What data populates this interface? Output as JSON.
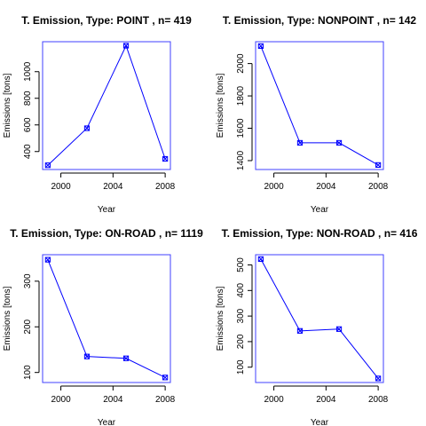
{
  "chart_data": [
    {
      "type": "line",
      "title": "T. Emission, Type:  POINT , n= 419",
      "xlabel": "Year",
      "ylabel": "Emissions [tons]",
      "x": [
        1999,
        2002,
        2005,
        2008
      ],
      "values": [
        297,
        575,
        1195,
        345
      ],
      "xlim": [
        1998.6,
        2008.4
      ],
      "ylim": [
        265,
        1225
      ],
      "xticks": [
        2000,
        2004,
        2008
      ],
      "yticks": [
        400,
        600,
        800,
        1000
      ],
      "line_color": "#0000ff",
      "box_color": "#4040ff",
      "grid": false
    },
    {
      "type": "line",
      "title": "T. Emission, Type:  NONPOINT , n= 142",
      "xlabel": "Year",
      "ylabel": "Emissions [tons]",
      "x": [
        1999,
        2002,
        2005,
        2008
      ],
      "values": [
        2108,
        1510,
        1510,
        1373
      ],
      "xlim": [
        1998.6,
        2008.4
      ],
      "ylim": [
        1345,
        2135
      ],
      "xticks": [
        2000,
        2004,
        2008
      ],
      "yticks": [
        1400,
        1600,
        1800,
        2000
      ],
      "line_color": "#0000ff",
      "box_color": "#4040ff",
      "grid": false
    },
    {
      "type": "line",
      "title": "T. Emission, Type:  ON-ROAD , n= 1119",
      "xlabel": "Year",
      "ylabel": "Emissions [tons]",
      "x": [
        1999,
        2002,
        2005,
        2008
      ],
      "values": [
        347,
        135,
        131,
        89
      ],
      "xlim": [
        1998.6,
        2008.4
      ],
      "ylim": [
        78,
        358
      ],
      "xticks": [
        2000,
        2004,
        2008
      ],
      "yticks": [
        100,
        200,
        300
      ],
      "line_color": "#0000ff",
      "box_color": "#4040ff",
      "grid": false
    },
    {
      "type": "line",
      "title": "T. Emission, Type:  NON-ROAD , n= 416",
      "xlabel": "Year",
      "ylabel": "Emissions [tons]",
      "x": [
        1999,
        2002,
        2005,
        2008
      ],
      "values": [
        523,
        242,
        249,
        56
      ],
      "xlim": [
        1998.6,
        2008.4
      ],
      "ylim": [
        40,
        540
      ],
      "xticks": [
        2000,
        2004,
        2008
      ],
      "yticks": [
        100,
        200,
        300,
        400,
        500
      ],
      "line_color": "#0000ff",
      "box_color": "#4040ff",
      "grid": false
    }
  ]
}
